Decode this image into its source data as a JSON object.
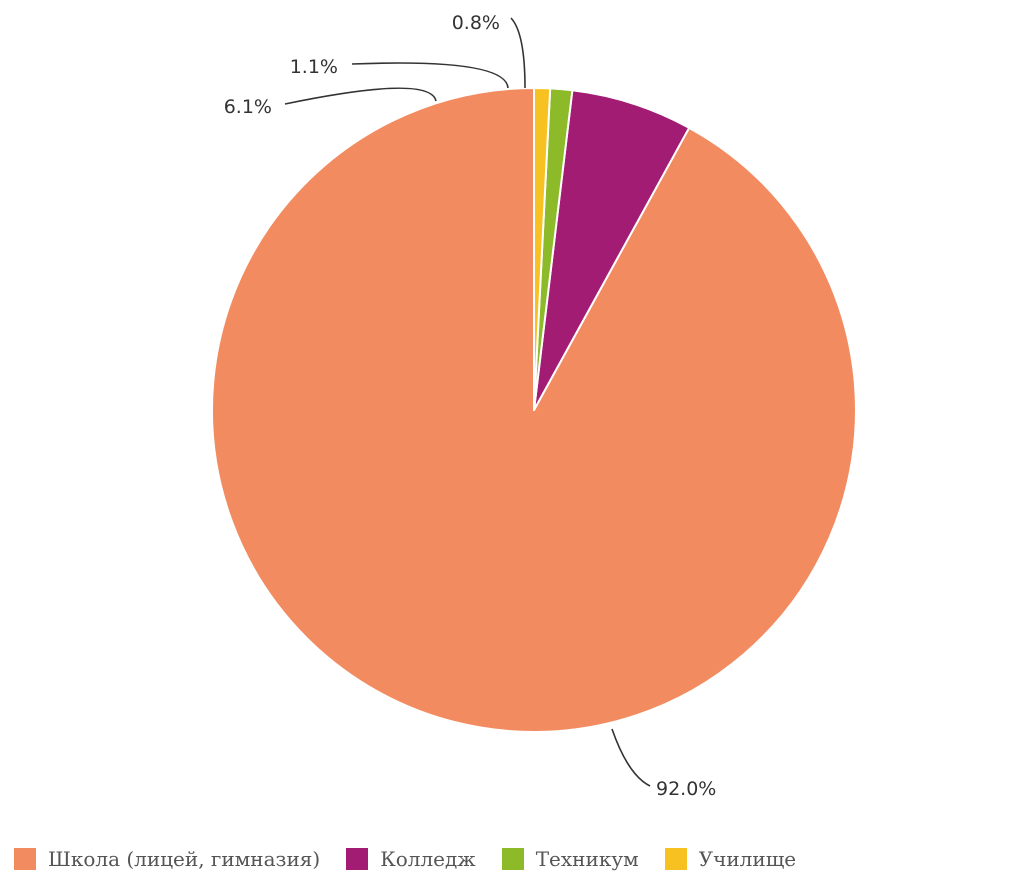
{
  "chart_data": {
    "type": "pie",
    "title": "",
    "start_angle_deg": 0,
    "direction": "counterclockwise",
    "slices": [
      {
        "name": "Школа (лицей, гимназия)",
        "value": 92.0,
        "label": "92.0%",
        "color": "#f28c60"
      },
      {
        "name": "Колледж",
        "value": 6.1,
        "label": "6.1%",
        "color": "#a31c74"
      },
      {
        "name": "Техникум",
        "value": 1.1,
        "label": "1.1%",
        "color": "#8cba28"
      },
      {
        "name": "Училище",
        "value": 0.8,
        "label": "0.8%",
        "color": "#f7c121"
      }
    ],
    "legend_position": "bottom"
  }
}
